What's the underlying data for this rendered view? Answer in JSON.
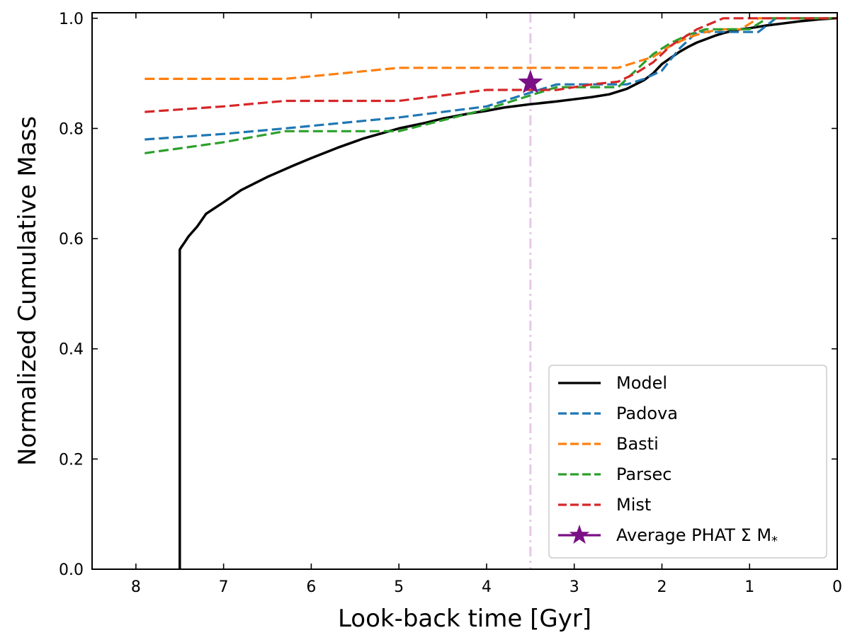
{
  "chart_data": {
    "type": "line",
    "title": "",
    "xlabel": "Look-back time [Gyr]",
    "ylabel": "Normalized Cumulative Mass",
    "xlim": [
      8.5,
      0
    ],
    "ylim": [
      0,
      1.01
    ],
    "xticks": [
      8,
      7,
      6,
      5,
      4,
      3,
      2,
      1,
      0
    ],
    "yticks": [
      0.0,
      0.2,
      0.4,
      0.6,
      0.8,
      1.0
    ],
    "xtick_labels": [
      "8",
      "7",
      "6",
      "5",
      "4",
      "3",
      "2",
      "1",
      "0"
    ],
    "ytick_labels": [
      "0.0",
      "0.2",
      "0.4",
      "0.6",
      "0.8",
      "1.0"
    ],
    "grid": false,
    "legend_position": "bottom-right",
    "vline": {
      "x": 3.5,
      "style": "dashdot",
      "color": "#e6c8e8"
    },
    "series": [
      {
        "name": "Model",
        "style": "solid",
        "color": "#000000",
        "x": [
          7.5,
          7.5,
          7.5,
          7.48,
          7.45,
          7.4,
          7.3,
          7.2,
          7.0,
          6.8,
          6.5,
          6.2,
          6.0,
          5.7,
          5.4,
          5.0,
          4.7,
          4.5,
          4.2,
          4.0,
          3.8,
          3.5,
          3.2,
          3.0,
          2.8,
          2.6,
          2.4,
          2.2,
          2.1,
          2.0,
          1.9,
          1.8,
          1.7,
          1.6,
          1.5,
          1.4,
          1.3,
          1.2,
          1.1,
          1.0,
          0.8,
          0.6,
          0.4,
          0.2,
          0.0
        ],
        "y": [
          0.0,
          0.3,
          0.58,
          0.585,
          0.592,
          0.604,
          0.622,
          0.645,
          0.666,
          0.688,
          0.712,
          0.733,
          0.746,
          0.765,
          0.782,
          0.8,
          0.81,
          0.818,
          0.827,
          0.832,
          0.838,
          0.844,
          0.849,
          0.853,
          0.857,
          0.862,
          0.872,
          0.888,
          0.9,
          0.917,
          0.928,
          0.939,
          0.948,
          0.956,
          0.962,
          0.968,
          0.973,
          0.977,
          0.98,
          0.982,
          0.987,
          0.991,
          0.995,
          0.998,
          1.0
        ]
      },
      {
        "name": "Padova",
        "style": "dashed",
        "color": "#1f77b4",
        "x": [
          7.9,
          7.0,
          6.3,
          5.0,
          4.0,
          3.5,
          3.2,
          2.8,
          2.4,
          2.2,
          2.0,
          1.8,
          1.6,
          1.4,
          1.2,
          0.9,
          0.7,
          0.0
        ],
        "y": [
          0.78,
          0.79,
          0.8,
          0.82,
          0.84,
          0.865,
          0.88,
          0.88,
          0.88,
          0.89,
          0.905,
          0.945,
          0.975,
          0.975,
          0.975,
          0.975,
          1.0,
          1.0
        ]
      },
      {
        "name": "Basti",
        "style": "dashed",
        "color": "#ff7f0e",
        "x": [
          7.9,
          7.0,
          6.3,
          5.0,
          4.0,
          3.5,
          3.0,
          2.5,
          2.3,
          2.1,
          1.9,
          1.7,
          1.5,
          1.3,
          1.1,
          0.9,
          0.0
        ],
        "y": [
          0.89,
          0.89,
          0.89,
          0.91,
          0.91,
          0.91,
          0.91,
          0.91,
          0.92,
          0.93,
          0.95,
          0.965,
          0.975,
          0.98,
          0.98,
          1.0,
          1.0
        ]
      },
      {
        "name": "Parsec",
        "style": "dashed",
        "color": "#2ca02c",
        "x": [
          7.9,
          7.0,
          6.3,
          5.0,
          4.5,
          4.0,
          3.5,
          3.2,
          2.8,
          2.5,
          2.3,
          2.1,
          1.9,
          1.7,
          1.5,
          1.3,
          1.0,
          0.8,
          0.0
        ],
        "y": [
          0.755,
          0.775,
          0.795,
          0.795,
          0.815,
          0.835,
          0.86,
          0.875,
          0.875,
          0.875,
          0.905,
          0.935,
          0.955,
          0.97,
          0.98,
          0.98,
          0.98,
          1.0,
          1.0
        ]
      },
      {
        "name": "Mist",
        "style": "dashed",
        "color": "#d62728",
        "x": [
          7.9,
          7.0,
          6.3,
          5.0,
          4.0,
          3.5,
          3.2,
          2.8,
          2.5,
          2.3,
          2.1,
          1.9,
          1.6,
          1.3,
          0.0
        ],
        "y": [
          0.83,
          0.84,
          0.85,
          0.85,
          0.87,
          0.87,
          0.87,
          0.88,
          0.885,
          0.9,
          0.92,
          0.95,
          0.98,
          1.0,
          1.0
        ]
      }
    ],
    "markers": [
      {
        "name": "Average PHAT Σ M*",
        "label": "Average PHAT Σ M",
        "label_subscript": "*",
        "x": 3.5,
        "y": 0.883,
        "marker": "star",
        "color": "#7b0f86"
      }
    ]
  }
}
